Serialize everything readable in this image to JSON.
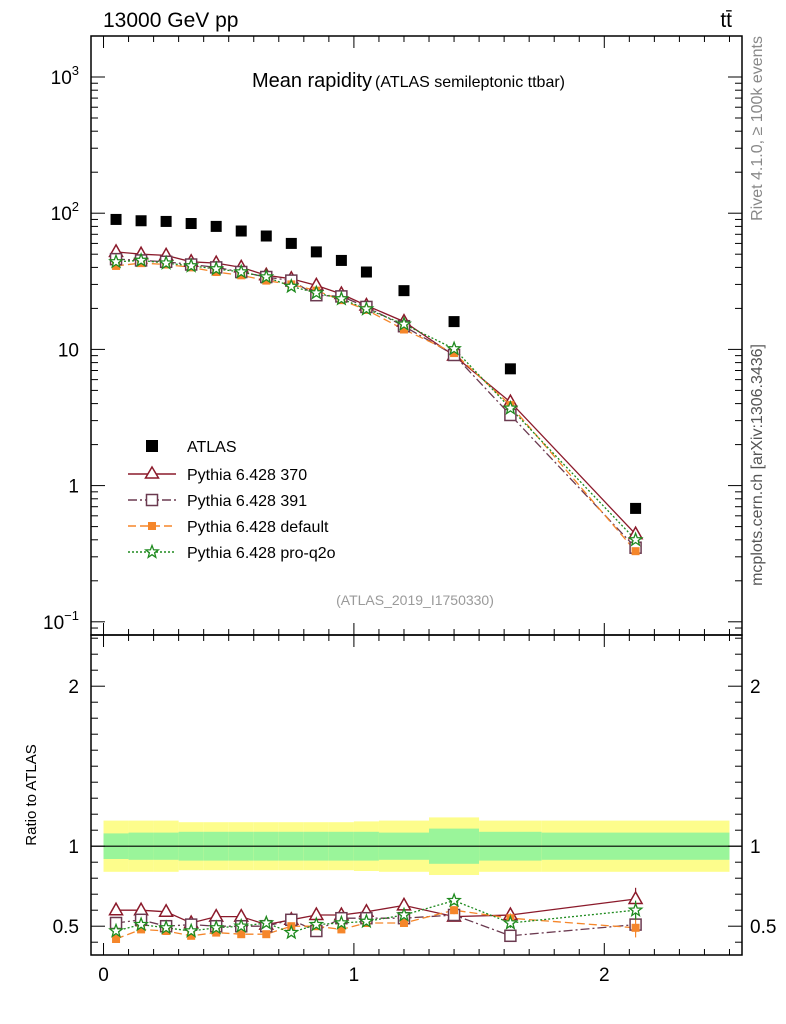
{
  "header": {
    "left": "13000 GeV pp",
    "right": "tt̄"
  },
  "side": {
    "top": "Rivet 4.1.0, ≥ 100k events",
    "bottom": "mcplots.cern.ch [arXiv:1306.3436]"
  },
  "chart_data": {
    "type": "scatter",
    "title": "Mean rapidity",
    "subtitle": "(ATLAS semileptonic ttbar)",
    "watermark": "(ATLAS_2019_I1750330)",
    "main_yscale": "log",
    "main_ylim": [
      0.08,
      2000
    ],
    "xlim": [
      -0.05,
      2.55
    ],
    "main_yticks": [
      {
        "v": 0.1,
        "base": "10",
        "exp": "−1"
      },
      {
        "v": 1,
        "base": "1",
        "exp": ""
      },
      {
        "v": 10,
        "base": "10",
        "exp": ""
      },
      {
        "v": 100,
        "base": "10",
        "exp": "2"
      },
      {
        "v": 1000,
        "base": "10",
        "exp": "3"
      }
    ],
    "xticks": [
      {
        "v": 0,
        "label": "0"
      },
      {
        "v": 1,
        "label": "1"
      },
      {
        "v": 2,
        "label": "2"
      }
    ],
    "ratio_ylabel": "Ratio to ATLAS",
    "ratio_ylim": [
      0.32,
      2.32
    ],
    "ratio_yticks": [
      {
        "v": 0.5,
        "label": "0.5"
      },
      {
        "v": 1,
        "label": "1"
      },
      {
        "v": 2,
        "label": "2"
      }
    ],
    "bins": [
      [
        0.0,
        0.1
      ],
      [
        0.1,
        0.2
      ],
      [
        0.2,
        0.3
      ],
      [
        0.3,
        0.4
      ],
      [
        0.4,
        0.5
      ],
      [
        0.5,
        0.6
      ],
      [
        0.6,
        0.7
      ],
      [
        0.7,
        0.8
      ],
      [
        0.8,
        0.9
      ],
      [
        0.9,
        1.0
      ],
      [
        1.0,
        1.1
      ],
      [
        1.1,
        1.3
      ],
      [
        1.3,
        1.5
      ],
      [
        1.5,
        1.75
      ],
      [
        1.75,
        2.5
      ]
    ],
    "x": [
      0.05,
      0.15,
      0.25,
      0.35,
      0.45,
      0.55,
      0.65,
      0.75,
      0.85,
      0.95,
      1.05,
      1.2,
      1.4,
      1.625,
      2.125
    ],
    "data": {
      "name": "ATLAS",
      "values": [
        90,
        88,
        87,
        84,
        80,
        74,
        68,
        60,
        52,
        45,
        37,
        27,
        16,
        7.2,
        0.68
      ],
      "band_inner": [
        0.08,
        0.085,
        0.085,
        0.09,
        0.09,
        0.09,
        0.09,
        0.09,
        0.09,
        0.09,
        0.09,
        0.085,
        0.11,
        0.09,
        0.085
      ],
      "band_outer": [
        0.16,
        0.16,
        0.16,
        0.15,
        0.15,
        0.15,
        0.15,
        0.15,
        0.15,
        0.15,
        0.155,
        0.16,
        0.18,
        0.16,
        0.16
      ]
    },
    "series": [
      {
        "name": "Pythia 6.428 370",
        "color": "#8b1a2b",
        "dash": "",
        "marker": "triangle",
        "values": [
          52,
          50,
          49,
          44,
          43,
          40,
          35,
          33,
          29.5,
          25.5,
          21,
          16,
          9.0,
          4.1,
          0.44
        ],
        "ratio": [
          0.6,
          0.6,
          0.59,
          0.52,
          0.56,
          0.56,
          0.51,
          0.54,
          0.57,
          0.57,
          0.59,
          0.63,
          0.56,
          0.57,
          0.67
        ],
        "ratio_err": [
          0.015,
          0.015,
          0.015,
          0.015,
          0.015,
          0.02,
          0.02,
          0.02,
          0.02,
          0.02,
          0.025,
          0.02,
          0.025,
          0.035,
          0.07
        ]
      },
      {
        "name": "Pythia 6.428 391",
        "color": "#6b3a50",
        "dash": "9,3,2,3",
        "marker": "square",
        "values": [
          46,
          45,
          44,
          42,
          40,
          37,
          34,
          32,
          25,
          24.5,
          20.5,
          14.8,
          9.1,
          3.3,
          0.35
        ],
        "ratio": [
          0.52,
          0.54,
          0.5,
          0.51,
          0.5,
          0.5,
          0.5,
          0.54,
          0.47,
          0.55,
          0.55,
          0.55,
          0.57,
          0.44,
          0.51
        ],
        "ratio_err": [
          0.015,
          0.015,
          0.015,
          0.015,
          0.015,
          0.02,
          0.02,
          0.02,
          0.02,
          0.02,
          0.025,
          0.02,
          0.025,
          0.03,
          0.05
        ]
      },
      {
        "name": "Pythia 6.428 default",
        "color": "#f5862a",
        "dash": "8,4",
        "marker": "filled-square",
        "values": [
          41,
          43,
          42,
          40,
          37,
          35,
          32,
          30,
          27,
          23,
          19.5,
          14,
          9.4,
          3.9,
          0.33
        ],
        "ratio": [
          0.42,
          0.48,
          0.47,
          0.44,
          0.46,
          0.45,
          0.45,
          0.5,
          0.5,
          0.48,
          0.52,
          0.52,
          0.6,
          0.55,
          0.49
        ],
        "ratio_err": [
          0.015,
          0.015,
          0.015,
          0.015,
          0.015,
          0.02,
          0.02,
          0.02,
          0.02,
          0.02,
          0.025,
          0.02,
          0.025,
          0.03,
          0.06
        ]
      },
      {
        "name": "Pythia 6.428 pro-q2o",
        "color": "#1e8a1e",
        "dash": "2,2",
        "marker": "star",
        "values": [
          44,
          45,
          43,
          41,
          39,
          37,
          34,
          29,
          26,
          23.5,
          19.8,
          15.3,
          10.1,
          3.7,
          0.4
        ],
        "ratio": [
          0.47,
          0.51,
          0.49,
          0.47,
          0.49,
          0.5,
          0.52,
          0.46,
          0.51,
          0.52,
          0.53,
          0.57,
          0.66,
          0.52,
          0.6
        ],
        "ratio_err": [
          0.015,
          0.015,
          0.015,
          0.015,
          0.015,
          0.02,
          0.02,
          0.02,
          0.02,
          0.02,
          0.025,
          0.02,
          0.025,
          0.03,
          0.06
        ]
      }
    ]
  }
}
